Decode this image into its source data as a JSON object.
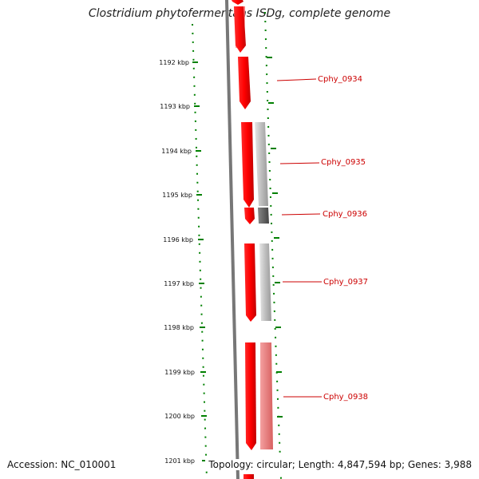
{
  "title": "Clostridium phytofermentans ISDg, complete genome",
  "accession": "Accession: NC_010001",
  "topology": "Topology: circular; Length: 4,847,594 bp; Genes: 3,988",
  "ruler": {
    "labels": [
      "1192 kbp",
      "1193 kbp",
      "1194 kbp",
      "1195 kbp",
      "1196 kbp",
      "1197 kbp",
      "1198 kbp",
      "1199 kbp",
      "1200 kbp",
      "1201 kbp"
    ]
  },
  "genes": [
    {
      "label": "Cphy_0934"
    },
    {
      "label": "Cphy_0935"
    },
    {
      "label": "Cphy_0936"
    },
    {
      "label": "Cphy_0937"
    },
    {
      "label": "Cphy_0938"
    }
  ],
  "colors": {
    "gene": "#ff0000",
    "backbone": "#777777",
    "ruler": "#008000",
    "label": "#cc0000"
  }
}
